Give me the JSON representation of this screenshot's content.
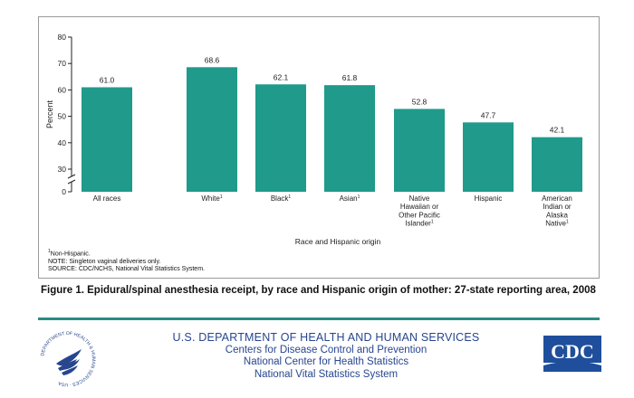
{
  "chart_data": {
    "type": "bar",
    "categories": [
      [
        "All races"
      ],
      [
        "White"
      ],
      [
        "Black"
      ],
      [
        "Asian"
      ],
      [
        "Native",
        "Hawaiian or",
        "Other Pacific",
        "Islander"
      ],
      [
        "Hispanic"
      ],
      [
        "American",
        "Indian or",
        "Alaska",
        "Native"
      ]
    ],
    "category_footnote": [
      "",
      "1",
      "1",
      "1",
      "1",
      "",
      "1"
    ],
    "values": [
      61.0,
      68.6,
      62.1,
      61.8,
      52.8,
      47.7,
      42.1
    ],
    "value_labels": [
      "61.0",
      "68.6",
      "62.1",
      "61.8",
      "52.8",
      "47.7",
      "42.1"
    ],
    "ylabel": "Percent",
    "xlabel": "Race and Hispanic origin",
    "ylim": [
      0,
      80
    ],
    "axis_break": [
      0,
      30
    ],
    "yticks": [
      0,
      30,
      40,
      50,
      60,
      70,
      80
    ],
    "bar_color": "#1f9a8b",
    "grid": false
  },
  "notes": {
    "footnote_marker": "1",
    "footnote_text": "Non-Hispanic.",
    "note": "NOTE: Singleton vaginal deliveries only.",
    "source": "SOURCE: CDC/NCHS, National Vital Statistics System."
  },
  "caption": "Figure 1. Epidural/spinal anesthesia receipt, by race and Hispanic origin of mother: 27-state reporting area, 2008",
  "footer": {
    "department": "U.S. DEPARTMENT OF HEALTH AND HUMAN SERVICES",
    "line2": "Centers for Disease Control and Prevention",
    "line3": "National Center for Health Statistics",
    "line4": "National Vital Statistics System",
    "logo_text": "CDC",
    "seal_text": "DEPARTMENT OF HEALTH & HUMAN SERVICES · USA",
    "divider_color": "#2a8c84",
    "text_color": "#27468f",
    "logo_color": "#1f4f9c"
  }
}
